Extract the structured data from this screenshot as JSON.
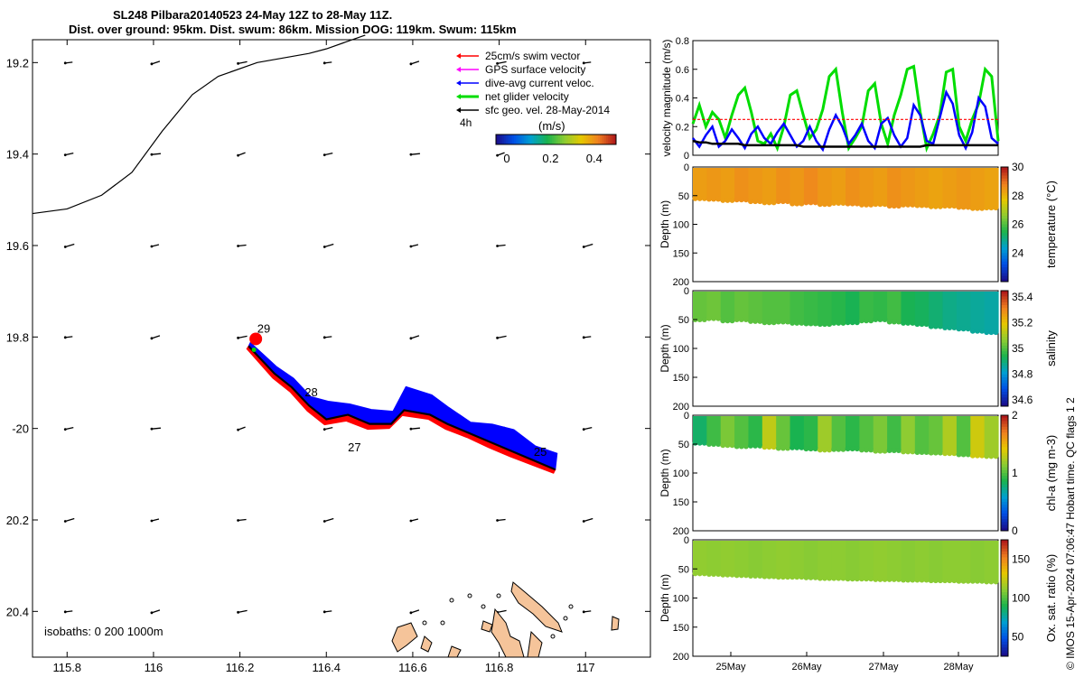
{
  "header": {
    "title_line1": "SL248 Pilbara20140523 24-May 12Z to 28-May 11Z.",
    "title_line2": "Dist. over ground: 95km. Dist. swum: 86km. Mission DOG: 119km. Swum: 115km"
  },
  "credit": "© IMOS 15-Apr-2024 07:06:47 Hobart time. QC flags 1  2",
  "map": {
    "legend": [
      {
        "label": "25cm/s swim vector",
        "color": "#ff0000"
      },
      {
        "label": "GPS surface velocity",
        "color": "#ff00ff"
      },
      {
        "label": "dive-avg current veloc.",
        "color": "#0000ff"
      },
      {
        "label": "net glider velocity",
        "color": "#00dd00"
      },
      {
        "label": "sfc geo. vel. 28-May-2014",
        "color": "#000000"
      }
    ],
    "legend_extra": "4h",
    "colorbar_title": "(m/s)",
    "colorbar_ticks": [
      "0",
      "0.2",
      "0.4"
    ],
    "isobaths_text": "isobaths: 0   200  1000m",
    "day_labels": [
      "29",
      "28",
      "27",
      "25"
    ],
    "colors": {
      "track_red": "#ff0000",
      "track_blue": "#0000ff",
      "land": "#f5c49a",
      "isobath": "#000000"
    }
  },
  "chart_data": [
    {
      "type": "scatter",
      "title": "SL248 Pilbara20140523 24-May 12Z to 28-May 11Z.",
      "subtitle": "Dist. over ground: 95km. Dist. swum: 86km. Mission DOG: 119km. Swum: 115km",
      "xlabel": "",
      "ylabel": "",
      "xlim": [
        115.72,
        117.15
      ],
      "ylim": [
        -20.5,
        -19.15
      ],
      "xticks": [
        115.8,
        116,
        116.2,
        116.4,
        116.6,
        116.8,
        117
      ],
      "xtick_labels": [
        "115.8",
        "116",
        "116.2",
        "116.4",
        "116.6",
        "116.8",
        "117"
      ],
      "yticks": [
        -19.2,
        -19.4,
        -19.6,
        -19.8,
        -20,
        -20.2,
        -20.4
      ],
      "ytick_labels": [
        "19.2",
        "19.4",
        "19.6",
        "19.8",
        "-20",
        "20.2",
        "20.4"
      ],
      "track": {
        "lon": [
          116.93,
          116.88,
          116.83,
          116.78,
          116.73,
          116.68,
          116.64,
          116.58,
          116.55,
          116.5,
          116.45,
          116.4,
          116.36,
          116.32,
          116.28,
          116.25,
          116.22
        ],
        "lat": [
          -20.09,
          -20.07,
          -20.05,
          -20.03,
          -20.01,
          -19.99,
          -19.97,
          -19.96,
          -19.99,
          -19.99,
          -19.97,
          -19.98,
          -19.95,
          -19.91,
          -19.88,
          -19.85,
          -19.82
        ]
      },
      "day_labels": [
        {
          "text": "29",
          "lon": 116.24,
          "lat": -19.79
        },
        {
          "text": "28",
          "lon": 116.35,
          "lat": -19.93
        },
        {
          "text": "27",
          "lon": 116.45,
          "lat": -20.05
        },
        {
          "text": "25",
          "lon": 116.88,
          "lat": -20.06
        }
      ],
      "isobath": {
        "lon": [
          115.72,
          115.8,
          115.88,
          115.95,
          116.02,
          116.09,
          116.15,
          116.24,
          116.36,
          116.4,
          116.49
        ],
        "lat": [
          -19.53,
          -19.52,
          -19.49,
          -19.44,
          -19.35,
          -19.27,
          -19.23,
          -19.2,
          -19.18,
          -19.17,
          -19.14
        ]
      },
      "colorbar": {
        "min": 0,
        "max": 0.5,
        "label": "(m/s)",
        "ticks": [
          0,
          0.2,
          0.4
        ]
      }
    },
    {
      "type": "line",
      "ylabel": "velocity magnitude (m/s)",
      "xlim": [
        0,
        100
      ],
      "ylim": [
        0,
        0.8
      ],
      "yticks": [
        0,
        0.2,
        0.4,
        0.6,
        0.8
      ],
      "ytick_labels": [
        "0",
        "0.2",
        "0.4",
        "0.6",
        "0.8"
      ],
      "series": [
        {
          "color": "#00dd00",
          "values": [
            0.22,
            0.35,
            0.2,
            0.3,
            0.25,
            0.12,
            0.28,
            0.42,
            0.47,
            0.3,
            0.1,
            0.08,
            0.15,
            0.05,
            0.2,
            0.42,
            0.45,
            0.28,
            0.12,
            0.18,
            0.32,
            0.55,
            0.6,
            0.3,
            0.05,
            0.12,
            0.2,
            0.45,
            0.5,
            0.22,
            0.08,
            0.28,
            0.42,
            0.6,
            0.62,
            0.3,
            0.05,
            0.15,
            0.28,
            0.58,
            0.6,
            0.2,
            0.1,
            0.25,
            0.36,
            0.6,
            0.55,
            0.1
          ]
        },
        {
          "color": "#0000ff",
          "values": [
            0.12,
            0.06,
            0.14,
            0.2,
            0.06,
            0.1,
            0.18,
            0.12,
            0.05,
            0.15,
            0.2,
            0.12,
            0.08,
            0.16,
            0.22,
            0.14,
            0.06,
            0.1,
            0.2,
            0.1,
            0.04,
            0.18,
            0.28,
            0.2,
            0.08,
            0.14,
            0.22,
            0.1,
            0.05,
            0.22,
            0.26,
            0.14,
            0.06,
            0.12,
            0.35,
            0.28,
            0.1,
            0.08,
            0.26,
            0.44,
            0.36,
            0.14,
            0.05,
            0.16,
            0.4,
            0.34,
            0.12,
            0.08
          ]
        },
        {
          "color": "#ff0000",
          "values": [
            0.25,
            0.25,
            0.25,
            0.25,
            0.25,
            0.25,
            0.25,
            0.25,
            0.25,
            0.25,
            0.25,
            0.25,
            0.25,
            0.25,
            0.25,
            0.25,
            0.25,
            0.25,
            0.25,
            0.25,
            0.25,
            0.25,
            0.25,
            0.25,
            0.25,
            0.25,
            0.25,
            0.25,
            0.25,
            0.25,
            0.25,
            0.25,
            0.25,
            0.25,
            0.25,
            0.25,
            0.25,
            0.25,
            0.25,
            0.25,
            0.25,
            0.25,
            0.25,
            0.25,
            0.25,
            0.25,
            0.25,
            0.25
          ]
        },
        {
          "color": "#000000",
          "values": [
            0.1,
            0.09,
            0.09,
            0.08,
            0.08,
            0.08,
            0.08,
            0.08,
            0.07,
            0.07,
            0.07,
            0.07,
            0.07,
            0.07,
            0.07,
            0.07,
            0.07,
            0.06,
            0.06,
            0.06,
            0.06,
            0.06,
            0.06,
            0.06,
            0.06,
            0.06,
            0.06,
            0.06,
            0.06,
            0.06,
            0.06,
            0.06,
            0.06,
            0.06,
            0.06,
            0.06,
            0.07,
            0.07,
            0.07,
            0.07,
            0.07,
            0.07,
            0.07,
            0.07,
            0.07,
            0.07,
            0.07,
            0.07
          ]
        }
      ]
    },
    {
      "type": "heatmap",
      "variable": "temperature",
      "ylabel": "Depth (m)",
      "clabel": "temperature (°C)",
      "ylim": [
        200,
        0
      ],
      "yticks": [
        0,
        50,
        100,
        150,
        200
      ],
      "clim": [
        22,
        30
      ],
      "cticks": [
        24,
        26,
        28,
        30
      ],
      "bottom_depth_m": [
        55,
        56,
        58,
        57,
        60,
        62,
        60,
        64,
        62,
        65,
        63,
        64,
        66,
        65,
        68,
        66,
        67,
        69,
        68,
        70,
        72,
        71
      ],
      "values_c": [
        28.4,
        28.5,
        28.4,
        28.6,
        28.5,
        28.4,
        28.6,
        28.5,
        28.7,
        28.5,
        28.4,
        28.6,
        28.5,
        28.4,
        28.6,
        28.5,
        28.4,
        28.3,
        28.4,
        28.5,
        28.4,
        28.3
      ]
    },
    {
      "type": "heatmap",
      "variable": "salinity",
      "ylabel": "Depth (m)",
      "clabel": "salinity",
      "ylim": [
        200,
        0
      ],
      "yticks": [
        0,
        50,
        100,
        150,
        200
      ],
      "clim": [
        34.55,
        35.45
      ],
      "cticks": [
        34.6,
        34.8,
        35,
        35.2,
        35.4
      ],
      "bottom_depth_m": [
        50,
        48,
        52,
        50,
        53,
        55,
        54,
        56,
        57,
        58,
        56,
        55,
        52,
        50,
        54,
        56,
        58,
        62,
        64,
        66,
        70,
        72
      ],
      "values": [
        35.02,
        35.03,
        35.0,
        35.02,
        35.01,
        35.0,
        35.0,
        34.98,
        34.97,
        34.96,
        34.95,
        34.93,
        34.97,
        34.96,
        34.98,
        34.93,
        34.92,
        34.9,
        34.88,
        34.87,
        34.86,
        34.85
      ]
    },
    {
      "type": "heatmap",
      "variable": "chl-a",
      "ylabel": "Depth (m)",
      "clabel": "chl-a (mg m-3)",
      "ylim": [
        200,
        0
      ],
      "yticks": [
        0,
        50,
        100,
        150,
        200
      ],
      "clim": [
        0,
        2
      ],
      "cticks": [
        0,
        1,
        2
      ],
      "bottom_depth_m": [
        48,
        50,
        52,
        54,
        53,
        55,
        57,
        56,
        58,
        60,
        59,
        58,
        60,
        62,
        61,
        63,
        64,
        65,
        66,
        68,
        70,
        71
      ],
      "values": [
        0.8,
        0.95,
        1.1,
        1.0,
        0.9,
        1.3,
        1.05,
        0.85,
        0.9,
        1.2,
        1.0,
        0.9,
        1.0,
        1.1,
        0.95,
        1.15,
        1.0,
        1.05,
        1.25,
        1.0,
        1.35,
        1.2
      ]
    },
    {
      "type": "heatmap",
      "variable": "oxygen saturation",
      "ylabel": "Depth (m)",
      "clabel": "Ox. sat. ratio (%)",
      "ylim": [
        200,
        0
      ],
      "yticks": [
        0,
        50,
        100,
        150,
        200
      ],
      "clim": [
        25,
        175
      ],
      "cticks": [
        50,
        100,
        150
      ],
      "xticks": [
        "25May",
        "26May",
        "27May",
        "28May"
      ],
      "bottom_depth_m": [
        58,
        59,
        60,
        61,
        62,
        63,
        64,
        64,
        65,
        66,
        66,
        67,
        67,
        68,
        68,
        69,
        69,
        70,
        70,
        71,
        71,
        72
      ],
      "values": [
        112,
        111,
        112,
        111,
        110,
        111,
        112,
        111,
        110,
        111,
        111,
        110,
        111,
        112,
        111,
        110,
        111,
        110,
        111,
        111,
        110,
        111
      ]
    }
  ]
}
